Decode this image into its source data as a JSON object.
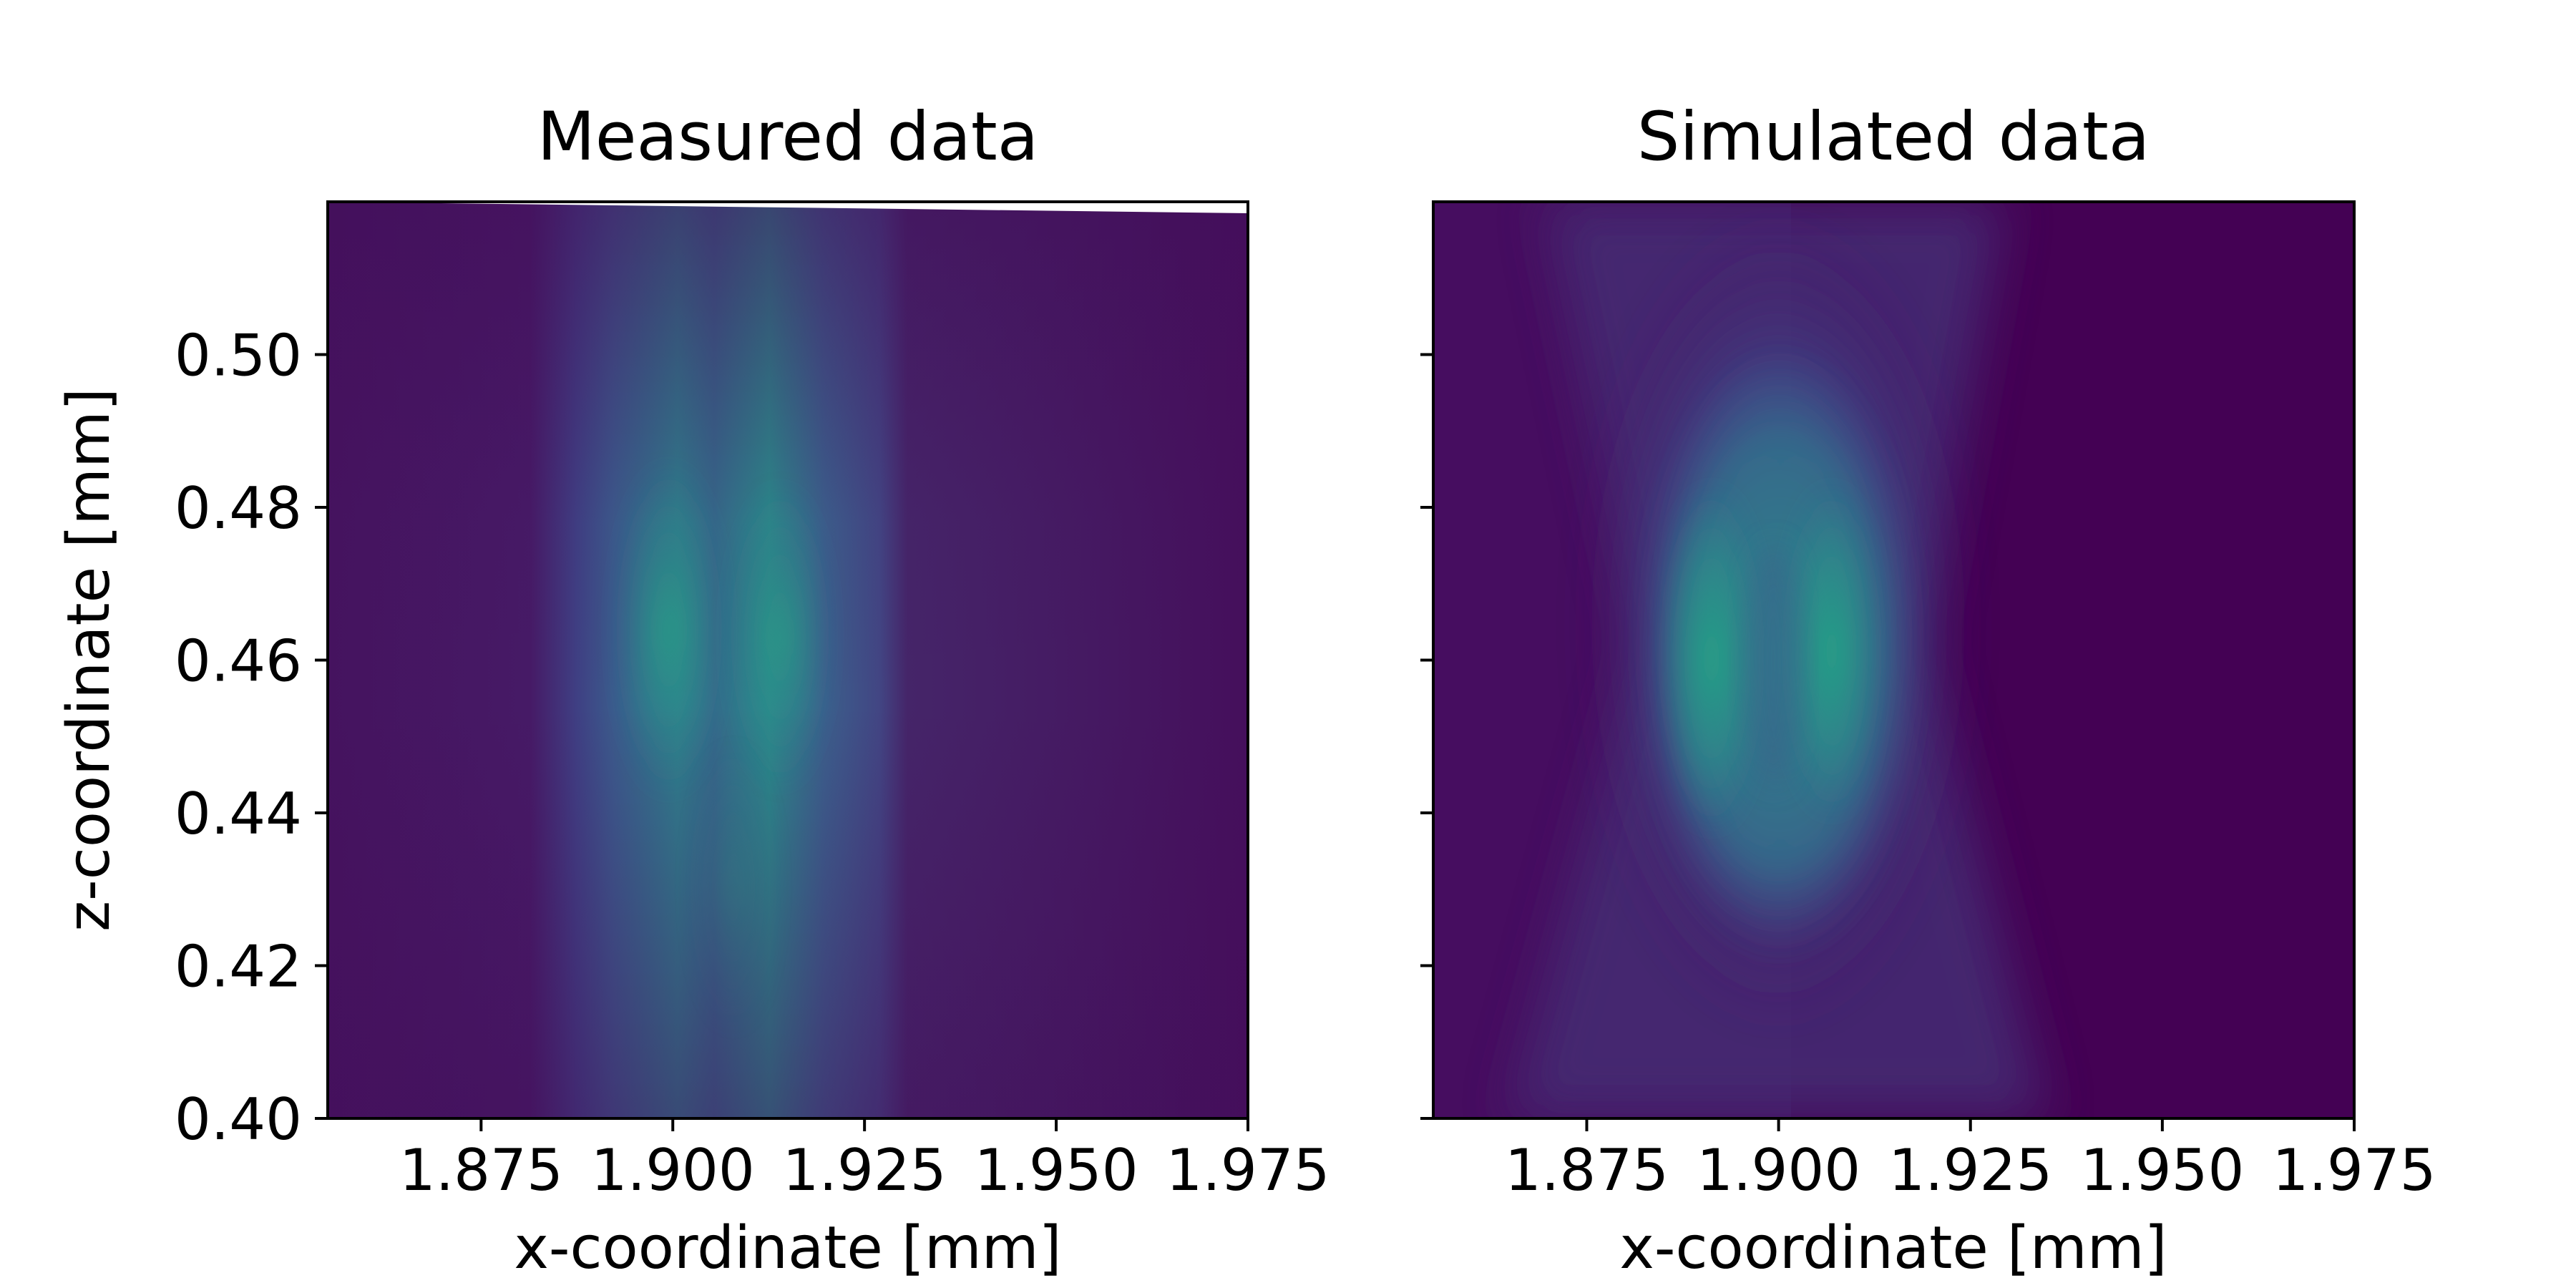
{
  "chart_data": [
    {
      "type": "heatmap",
      "title": "Measured data",
      "xlabel": "x-coordinate [mm]",
      "ylabel": "z-coordinate [mm]",
      "xlim": [
        1.855,
        1.975
      ],
      "ylim": [
        0.4,
        0.52
      ],
      "xticks": [
        1.875,
        1.9,
        1.925,
        1.95,
        1.975
      ],
      "xtick_labels": [
        "1.875",
        "1.900",
        "1.925",
        "1.950",
        "1.975"
      ],
      "yticks": [
        0.4,
        0.42,
        0.44,
        0.46,
        0.48,
        0.5
      ],
      "ytick_labels": [
        "0.40",
        "0.42",
        "0.44",
        "0.46",
        "0.48",
        "0.50"
      ],
      "colormap": "viridis",
      "grid": false
    },
    {
      "type": "heatmap",
      "title": "Simulated data",
      "xlabel": "x-coordinate [mm]",
      "ylabel": "",
      "xlim": [
        1.855,
        1.975
      ],
      "ylim": [
        0.4,
        0.52
      ],
      "xticks": [
        1.875,
        1.9,
        1.925,
        1.95,
        1.975
      ],
      "xtick_labels": [
        "1.875",
        "1.900",
        "1.925",
        "1.950",
        "1.975"
      ],
      "yticks": [
        0.4,
        0.42,
        0.44,
        0.46,
        0.48,
        0.5
      ],
      "ytick_labels": [
        "",
        "",
        "",
        "",
        "",
        ""
      ],
      "colormap": "viridis",
      "grid": false
    }
  ]
}
